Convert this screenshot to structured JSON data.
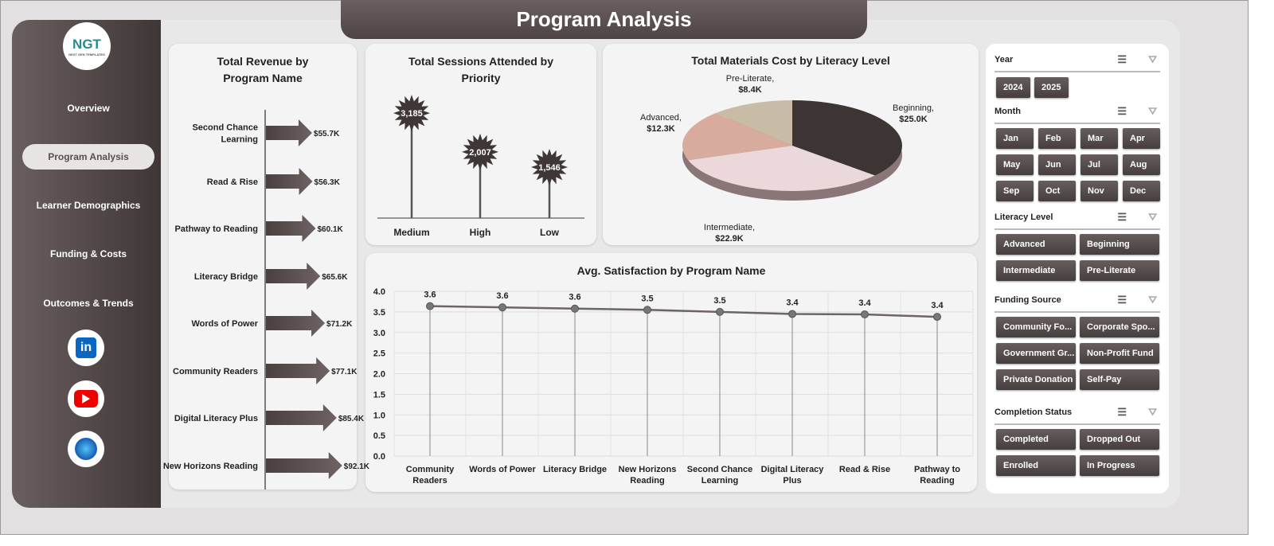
{
  "title": "Program Analysis",
  "logo": {
    "text": "NGT",
    "sub": "NEXT GEN TEMPLATES"
  },
  "nav": [
    "Overview",
    "Program Analysis",
    "Learner Demographics",
    "Funding & Costs",
    "Outcomes & Trends"
  ],
  "active_nav": "Program Analysis",
  "social": [
    "linkedin-icon",
    "youtube-icon",
    "globe-icon"
  ],
  "colors": {
    "dark": "#4e4444",
    "accent": "#5a4f4f",
    "pie": [
      "#3d3434",
      "#ead8da",
      "#d8ab9f",
      "#c9bca6"
    ]
  },
  "chart_data": [
    {
      "type": "bar",
      "title": "Total Revenue  by Program Name",
      "categories": [
        "Second Chance Learning",
        "Read & Rise",
        "Pathway to Reading",
        "Literacy Bridge",
        "Words of Power",
        "Community Readers",
        "Digital Literacy Plus",
        "New Horizons Reading"
      ],
      "values": [
        55.7,
        56.3,
        60.1,
        65.6,
        71.2,
        77.1,
        85.4,
        92.1
      ],
      "labels": [
        "$55.7K",
        "$56.3K",
        "$60.1K",
        "$65.6K",
        "$71.2K",
        "$77.1K",
        "$85.4K",
        "$92.1K"
      ]
    },
    {
      "type": "bar",
      "title": "Total Sessions Attended by Priority",
      "categories": [
        "Medium",
        "High",
        "Low"
      ],
      "values": [
        3185,
        2007,
        1546
      ],
      "labels": [
        "3,185",
        "2,007",
        "1,546"
      ]
    },
    {
      "type": "pie",
      "title": "Total Materials  Cost by Literacy Level",
      "categories": [
        "Beginning",
        "Intermediate",
        "Advanced",
        "Pre-Literate"
      ],
      "values": [
        25.0,
        22.9,
        12.3,
        8.4
      ],
      "labels": [
        "$25.0K",
        "$22.9K",
        "$12.3K",
        "$8.4K"
      ]
    },
    {
      "type": "line",
      "title": "Avg. Satisfaction by Program Name",
      "categories": [
        [
          "Community",
          "Readers"
        ],
        [
          "Words of Power"
        ],
        [
          "Literacy Bridge"
        ],
        [
          "New Horizons",
          "Reading"
        ],
        [
          "Second Chance",
          "Learning"
        ],
        [
          "Digital Literacy",
          "Plus"
        ],
        [
          "Read & Rise"
        ],
        [
          "Pathway to",
          "Reading"
        ]
      ],
      "values": [
        3.6,
        3.6,
        3.6,
        3.5,
        3.5,
        3.4,
        3.4,
        3.4
      ],
      "yticks": [
        "0.0",
        "0.5",
        "1.0",
        "1.5",
        "2.0",
        "2.5",
        "3.0",
        "3.5",
        "4.0"
      ],
      "ylim": [
        0,
        4
      ],
      "grid": true
    }
  ],
  "slicers": [
    {
      "title": "Year",
      "items": [
        "2024",
        "2025"
      ]
    },
    {
      "title": "Month",
      "items": [
        "Jan",
        "Feb",
        "Mar",
        "Apr",
        "May",
        "Jun",
        "Jul",
        "Aug",
        "Sep",
        "Oct",
        "Nov",
        "Dec"
      ]
    },
    {
      "title": "Literacy Level",
      "items": [
        "Advanced",
        "Beginning",
        "Intermediate",
        "Pre-Literate"
      ]
    },
    {
      "title": "Funding Source",
      "items": [
        "Community Fo...",
        "Corporate Spo...",
        "Government Gr...",
        "Non-Profit Fund",
        "Private Donation",
        "Self-Pay"
      ]
    },
    {
      "title": "Completion Status",
      "items": [
        "Completed",
        "Dropped Out",
        "Enrolled",
        "In Progress"
      ]
    }
  ]
}
